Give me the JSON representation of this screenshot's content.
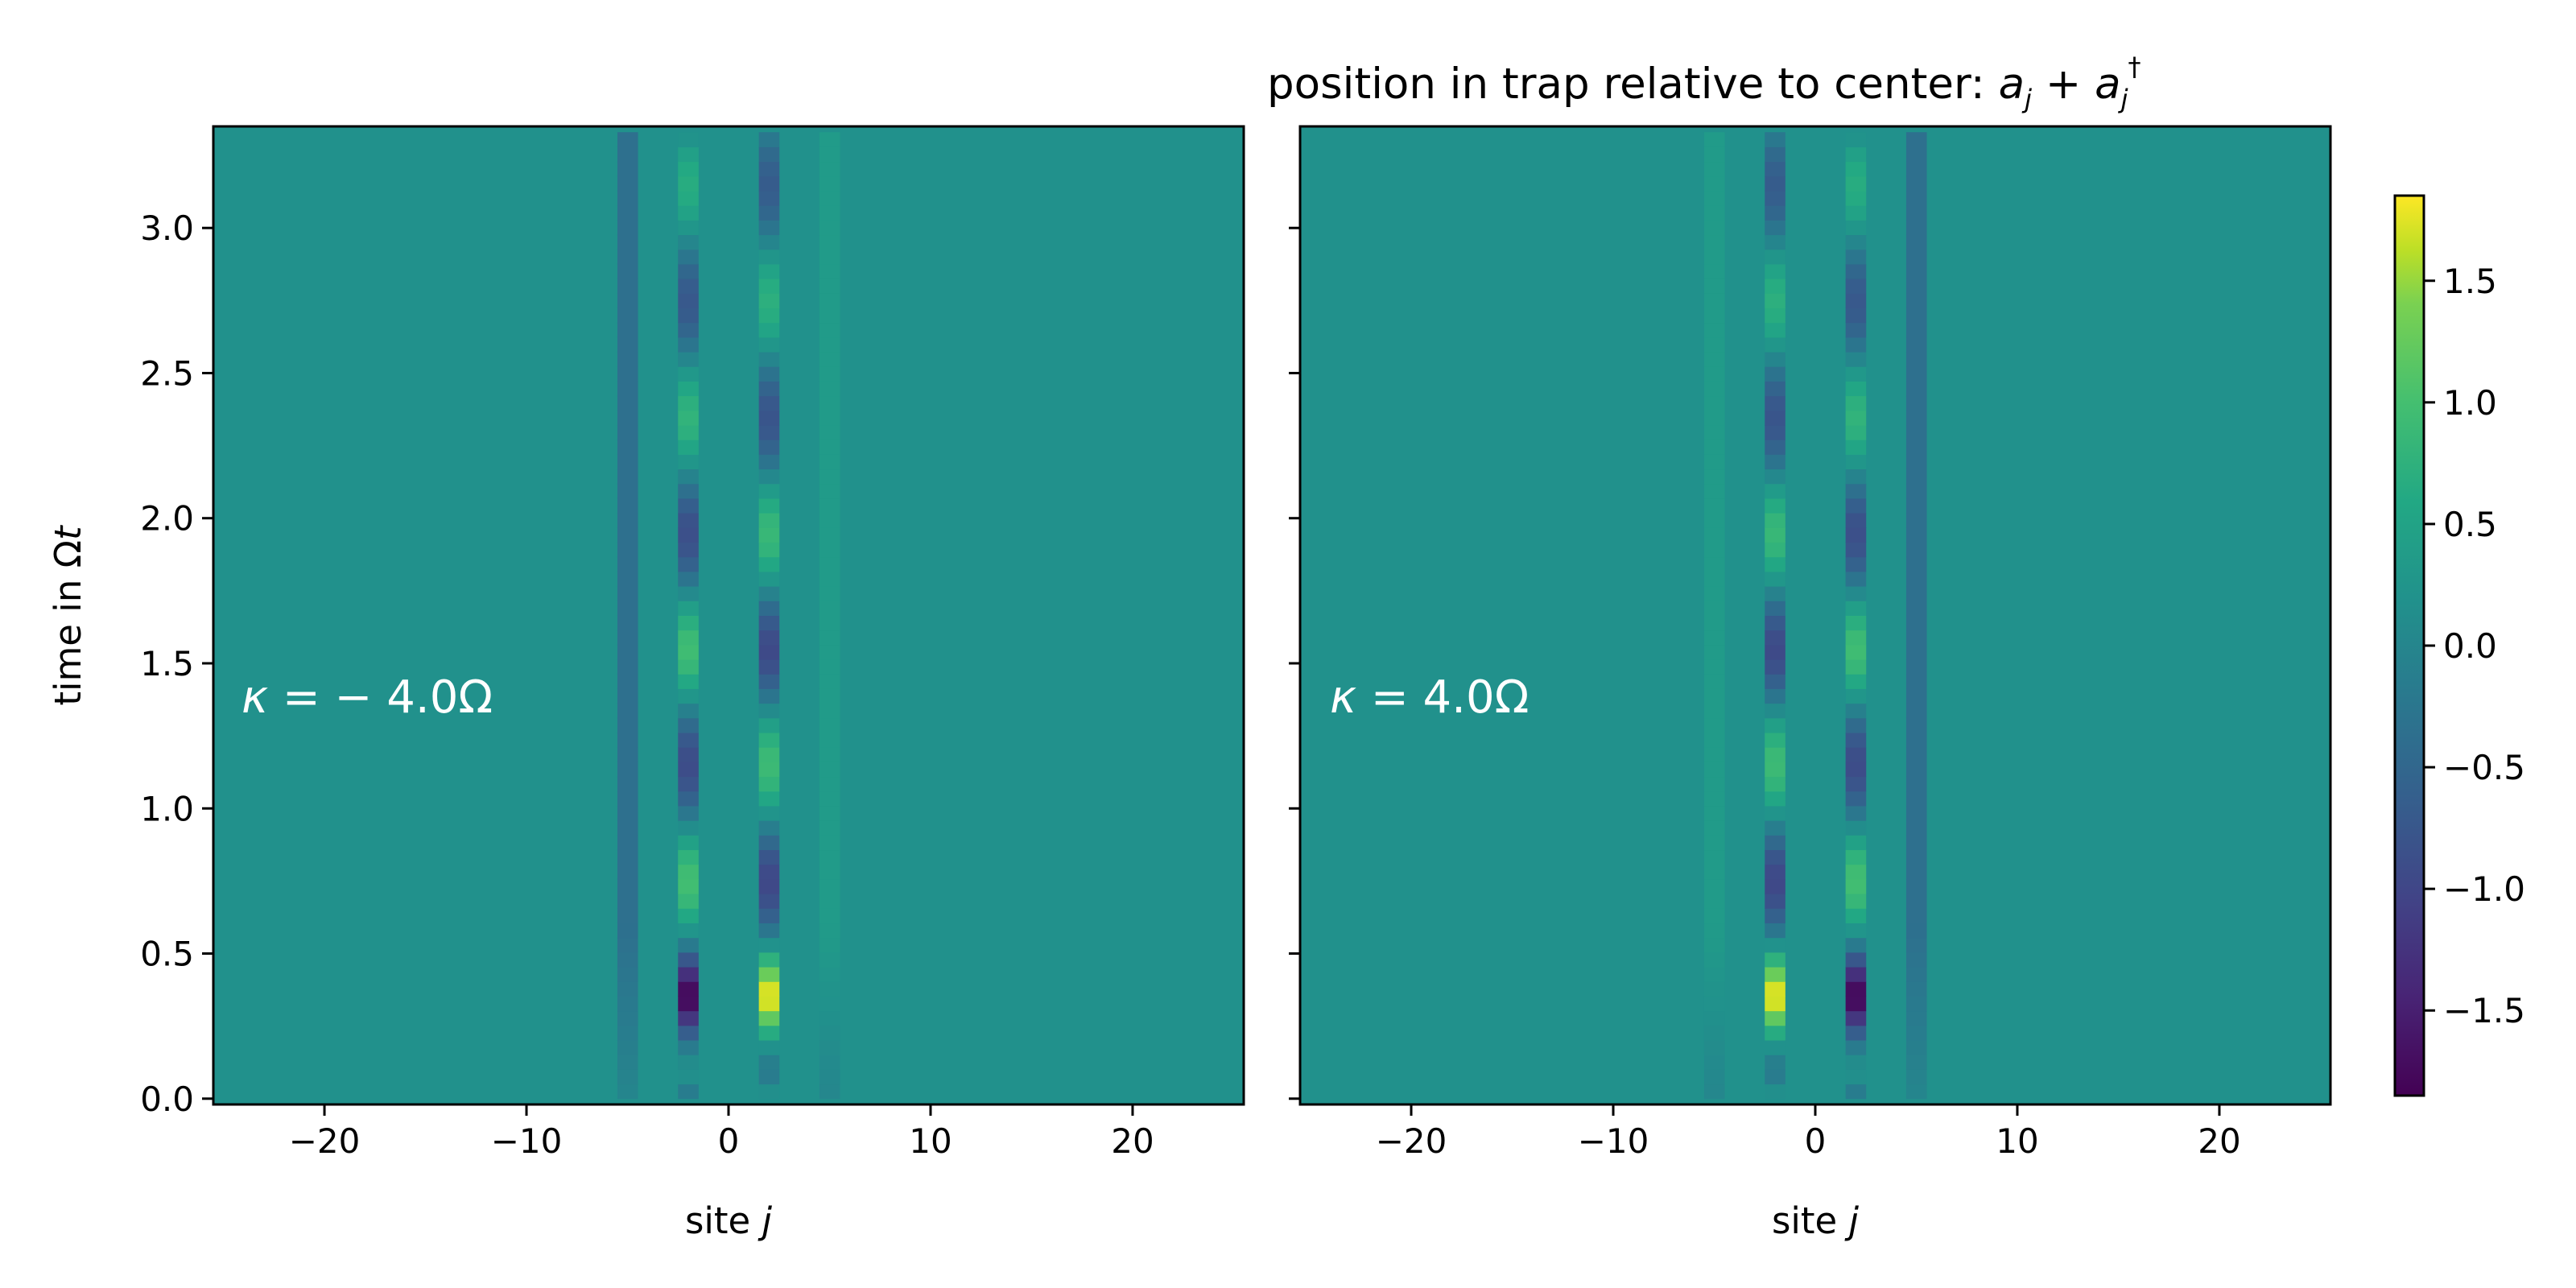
{
  "chart_data": {
    "type": "heatmap",
    "title": "position in trap relative to center: ",
    "title_math_parts": [
      "a",
      "j",
      " + ",
      "a",
      "j",
      "†"
    ],
    "colormap": "viridis",
    "colorbar": {
      "range": [
        -1.85,
        1.85
      ],
      "ticks": [
        1.5,
        1.0,
        0.5,
        0.0,
        -0.5,
        -1.0,
        -1.5
      ],
      "tick_labels": [
        "1.5",
        "1.0",
        "0.5",
        "0.0",
        "−0.5",
        "−1.0",
        "−1.5"
      ]
    },
    "x_range": [
      -25.5,
      25.5
    ],
    "y_range": [
      -0.02,
      3.35
    ],
    "x_ticks": [
      -20,
      -10,
      0,
      10,
      20
    ],
    "x_tick_labels": [
      "−20",
      "−10",
      "0",
      "10",
      "20"
    ],
    "y_ticks": [
      0.0,
      0.5,
      1.0,
      1.5,
      2.0,
      2.5,
      3.0
    ],
    "y_tick_labels": [
      "0.0",
      "0.5",
      "1.0",
      "1.5",
      "2.0",
      "2.5",
      "3.0"
    ],
    "ylabel_parts": [
      "time in Ω",
      "t"
    ],
    "panels": [
      {
        "xlabel_parts": [
          "site ",
          "j"
        ],
        "kappa_parts": [
          "κ",
          " = − 4.0Ω"
        ],
        "columns": [
          {
            "site": -2,
            "sign": -1
          },
          {
            "site": 2,
            "sign": 1
          },
          {
            "site": -5,
            "sign": -0.12
          },
          {
            "site": 5,
            "sign": 0.12
          }
        ]
      },
      {
        "xlabel_parts": [
          "site ",
          "j"
        ],
        "kappa_parts": [
          "κ",
          " = 4.0Ω"
        ],
        "columns": [
          {
            "site": -2,
            "sign": 1
          },
          {
            "site": 2,
            "sign": -1
          },
          {
            "site": -5,
            "sign": 0.12
          },
          {
            "site": 5,
            "sign": -0.12
          }
        ]
      }
    ],
    "oscillation": {
      "peak_amplitude": 1.85,
      "peak_time": 0.35,
      "period": 0.8,
      "envelope": [
        [
          0.0,
          0.0
        ],
        [
          0.08,
          0.3
        ],
        [
          0.35,
          1.85
        ],
        [
          0.6,
          1.0
        ],
        [
          1.1,
          0.9
        ],
        [
          1.5,
          0.95
        ],
        [
          2.0,
          0.85
        ],
        [
          2.5,
          0.75
        ],
        [
          3.3,
          0.65
        ]
      ]
    }
  }
}
